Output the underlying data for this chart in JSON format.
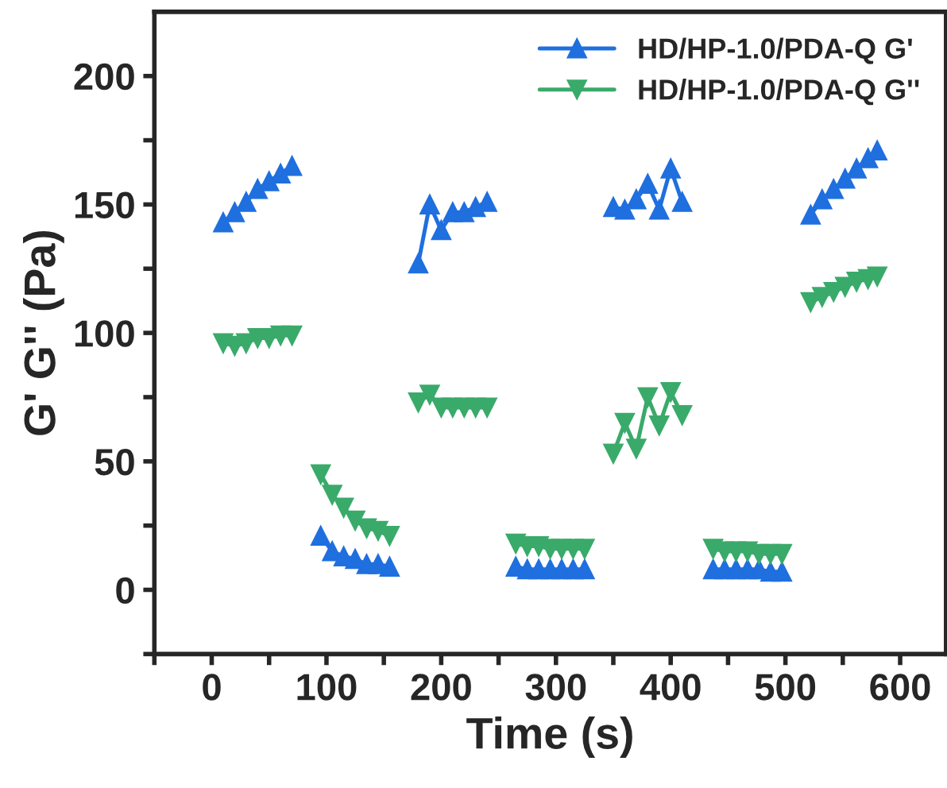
{
  "chart_data": {
    "type": "line",
    "xlabel": "Time (s)",
    "ylabel": "G' G'' (Pa)",
    "x": [
      10,
      20,
      30,
      40,
      50,
      60,
      70,
      82,
      95,
      105,
      115,
      125,
      135,
      145,
      155,
      168,
      180,
      190,
      200,
      210,
      220,
      230,
      240,
      252,
      265,
      275,
      285,
      295,
      305,
      315,
      325,
      338,
      350,
      360,
      370,
      380,
      390,
      400,
      410,
      424,
      437,
      447,
      457,
      467,
      477,
      487,
      497,
      510,
      522,
      532,
      542,
      552,
      562,
      572,
      580
    ],
    "series": [
      {
        "name": "HD/HP-1.0/PDA-Q G'",
        "color": "#1f6fdf",
        "marker": "triangle",
        "values": [
          143,
          147,
          151,
          156,
          159,
          162,
          165,
          null,
          21,
          15,
          13,
          12,
          10,
          10,
          9,
          null,
          127,
          150,
          140,
          147,
          147,
          149,
          151,
          null,
          9,
          8,
          8,
          8,
          8,
          8,
          8,
          null,
          149,
          148,
          152,
          158,
          148,
          164,
          151,
          null,
          8,
          8,
          8,
          8,
          8,
          7,
          7,
          null,
          146,
          152,
          156,
          160,
          164,
          168,
          171
        ]
      },
      {
        "name": "HD/HP-1.0/PDA-Q G''",
        "color": "#3aaa6a",
        "marker": "triangle_down",
        "values": [
          96,
          95,
          96,
          98,
          98,
          99,
          99,
          null,
          45,
          37,
          32,
          27,
          24,
          23,
          21,
          null,
          73,
          76,
          71,
          71,
          71,
          71,
          71,
          null,
          18,
          17,
          17,
          16,
          16,
          16,
          16,
          null,
          53,
          65,
          55,
          75,
          64,
          77,
          68,
          null,
          16,
          15,
          15,
          15,
          14,
          14,
          14,
          null,
          112,
          114,
          116,
          118,
          120,
          121,
          122
        ]
      }
    ],
    "xlim": [
      -50,
      640
    ],
    "ylim": [
      -25,
      225
    ],
    "xticks": [
      {
        "value": -50,
        "label": null
      },
      0,
      {
        "value": 50,
        "label": null
      },
      100,
      {
        "value": 150,
        "label": null
      },
      200,
      {
        "value": 250,
        "label": null
      },
      300,
      {
        "value": 350,
        "label": null
      },
      400,
      {
        "value": 450,
        "label": null
      },
      500,
      {
        "value": 550,
        "label": null
      },
      600
    ],
    "yticks": [
      {
        "value": -25,
        "label": null
      },
      0,
      {
        "value": 25,
        "label": null
      },
      50,
      {
        "value": 75,
        "label": null
      },
      100,
      {
        "value": 125,
        "label": null
      },
      150,
      {
        "value": 175,
        "label": null
      },
      200
    ],
    "legend": "top right",
    "grid": false,
    "line_style": "solid"
  }
}
